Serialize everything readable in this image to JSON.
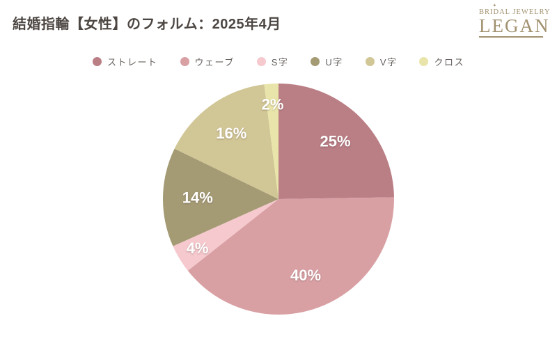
{
  "header": {
    "title": "結婚指輪【女性】のフォルム：2025年4月"
  },
  "logo": {
    "line1": "BRIDAL JEWELRY",
    "line2": "LEGAN",
    "sparkle": "✦",
    "color": "#a1916f"
  },
  "colors": {
    "background": "#ffffff",
    "title_text": "#4d4743",
    "legend_text": "#66615e",
    "percent_label": "#ffffff"
  },
  "chart_data": {
    "type": "pie",
    "title": "結婚指輪【女性】のフォルム：2025年4月",
    "legend_position": "top",
    "start_angle_deg": 0,
    "direction": "clockwise",
    "slices": [
      {
        "label": "ストレート",
        "value": 25,
        "display": "25%",
        "color": "#ba7e85"
      },
      {
        "label": "ウェーブ",
        "value": 40,
        "display": "40%",
        "color": "#d9a0a4"
      },
      {
        "label": "S字",
        "value": 4,
        "display": "4%",
        "color": "#f5c9cd"
      },
      {
        "label": "U字",
        "value": 14,
        "display": "14%",
        "color": "#a49b75"
      },
      {
        "label": "V字",
        "value": 16,
        "display": "16%",
        "color": "#d1c695"
      },
      {
        "label": "クロス",
        "value": 2,
        "display": "2%",
        "color": "#e9e5aa"
      }
    ]
  }
}
